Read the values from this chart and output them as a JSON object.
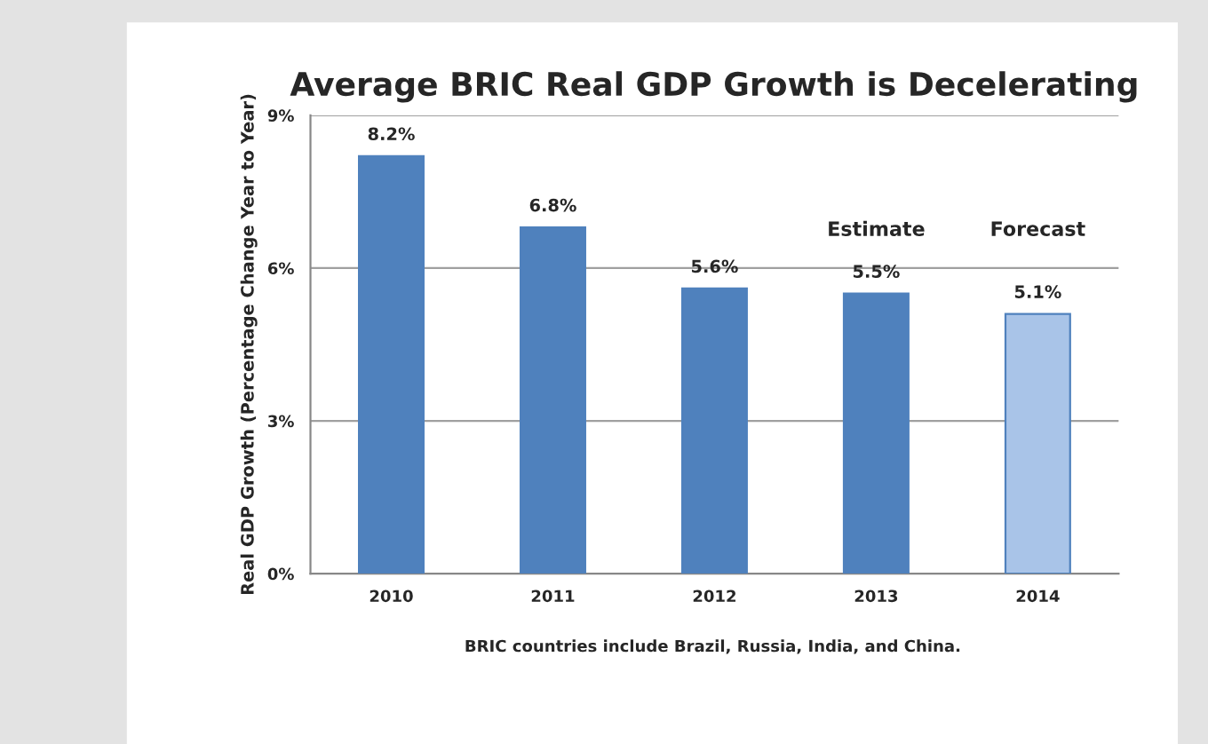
{
  "chart_data": {
    "type": "bar",
    "title": "Average BRIC Real GDP Growth is Decelerating",
    "ylabel": "Real GDP Growth (Percentage Change Year to Year)",
    "categories": [
      "2010",
      "2011",
      "2012",
      "2013",
      "2014"
    ],
    "values": [
      8.2,
      6.8,
      5.6,
      5.5,
      5.1
    ],
    "colors": [
      "#4f81bd",
      "#4f81bd",
      "#4f81bd",
      "#4f81bd",
      "#a9c4e8"
    ],
    "value_labels": [
      "8.2%",
      "6.8%",
      "5.6%",
      "5.5%",
      "5.1%"
    ],
    "ylim": [
      0,
      9
    ],
    "yticks": [
      {
        "value": 0,
        "label": "0%"
      },
      {
        "value": 3,
        "label": "3%"
      },
      {
        "value": 6,
        "label": "6%"
      },
      {
        "value": 9,
        "label": "9%"
      }
    ],
    "grid": "y",
    "annotations": [
      "Estimate",
      "Forecast",
      "BRIC countries include Brazil, Russia, India, and China."
    ]
  }
}
